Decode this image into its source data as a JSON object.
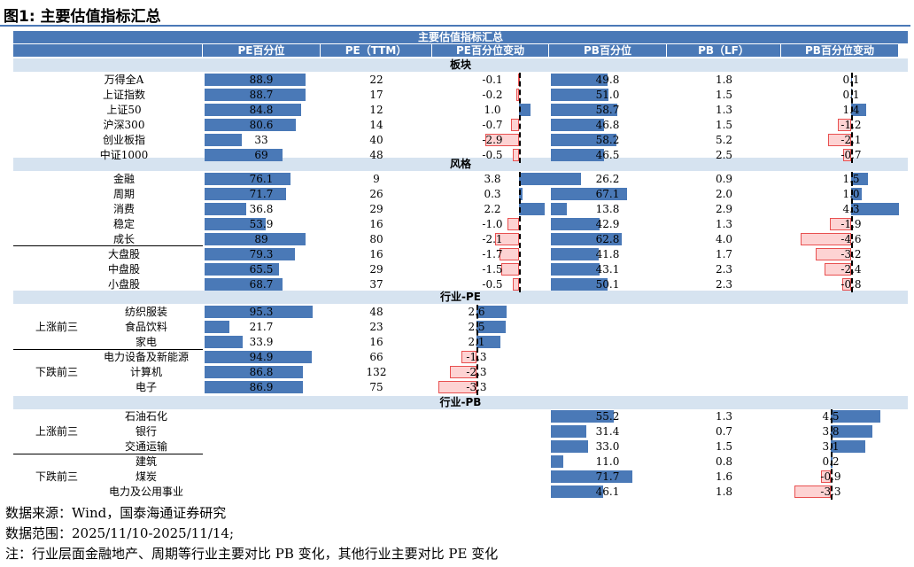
{
  "figure_title": "图1:  主要估值指标汇总",
  "table_title": "主要估值指标汇总",
  "headers": [
    "PE百分位",
    "PE（TTM）",
    "PE百分位变动",
    "PB百分位",
    "PB（LF）",
    "PB百分位变动"
  ],
  "sections": {
    "board": "板块",
    "style": "风格",
    "industry_pe": "行业-PE",
    "industry_pb": "行业-PB"
  },
  "groups": {
    "pe_up": "上涨前三",
    "pe_down": "下跌前三",
    "pb_up": "上涨前三",
    "pb_down": "下跌前三"
  },
  "notes": [
    "数据来源：Wind，国泰海通证券研究",
    "数据范围：2025/11/10-2025/11/14;",
    "注：行业层面金融地产、周期等行业主要对比 PB 变化，其他行业主要对比 PE 变化"
  ],
  "colors": {
    "header": "#4a79b7",
    "section": "#d6e3f0",
    "pos_bar": "#4a79b7",
    "neg_fill": "#fdd3d3",
    "neg_border": "#e85050"
  },
  "chart_data": {
    "type": "table",
    "rows": [
      {
        "name": "万得全A",
        "pe_pct": "88.9",
        "pe_ttm": "22",
        "pe_chg": "-0.1",
        "pb_pct": "49.8",
        "pb_lf": "1.8",
        "pb_chg": "0.1"
      },
      {
        "name": "上证指数",
        "pe_pct": "88.7",
        "pe_ttm": "17",
        "pe_chg": "-0.2",
        "pb_pct": "51.0",
        "pb_lf": "1.5",
        "pb_chg": "0.1"
      },
      {
        "name": "上证50",
        "pe_pct": "84.8",
        "pe_ttm": "12",
        "pe_chg": "1.0",
        "pb_pct": "58.7",
        "pb_lf": "1.3",
        "pb_chg": "1.4"
      },
      {
        "name": "沪深300",
        "pe_pct": "80.6",
        "pe_ttm": "14",
        "pe_chg": "-0.7",
        "pb_pct": "46.8",
        "pb_lf": "1.5",
        "pb_chg": "-1.2"
      },
      {
        "name": "创业板指",
        "pe_pct": "33",
        "pe_ttm": "40",
        "pe_chg": "-2.9",
        "pb_pct": "58.2",
        "pb_lf": "5.2",
        "pb_chg": "-2.1"
      },
      {
        "name": "中证1000",
        "pe_pct": "69",
        "pe_ttm": "48",
        "pe_chg": "-0.5",
        "pb_pct": "46.5",
        "pb_lf": "2.5",
        "pb_chg": "-0.7"
      },
      {
        "name": "金融",
        "pe_pct": "76.1",
        "pe_ttm": "9",
        "pe_chg": "3.8",
        "pb_pct": "26.2",
        "pb_lf": "0.9",
        "pb_chg": "1.5"
      },
      {
        "name": "周期",
        "pe_pct": "71.7",
        "pe_ttm": "26",
        "pe_chg": "0.3",
        "pb_pct": "67.1",
        "pb_lf": "2.0",
        "pb_chg": "1.0"
      },
      {
        "name": "消费",
        "pe_pct": "36.8",
        "pe_ttm": "29",
        "pe_chg": "2.2",
        "pb_pct": "13.8",
        "pb_lf": "2.9",
        "pb_chg": "4.3"
      },
      {
        "name": "稳定",
        "pe_pct": "53.9",
        "pe_ttm": "16",
        "pe_chg": "-1.0",
        "pb_pct": "42.9",
        "pb_lf": "1.3",
        "pb_chg": "-1.9"
      },
      {
        "name": "成长",
        "pe_pct": "89",
        "pe_ttm": "80",
        "pe_chg": "-2.1",
        "pb_pct": "62.8",
        "pb_lf": "4.0",
        "pb_chg": "-4.6"
      },
      {
        "name": "大盘股",
        "pe_pct": "79.3",
        "pe_ttm": "16",
        "pe_chg": "-1.7",
        "pb_pct": "41.8",
        "pb_lf": "1.7",
        "pb_chg": "-3.2"
      },
      {
        "name": "中盘股",
        "pe_pct": "65.5",
        "pe_ttm": "29",
        "pe_chg": "-1.5",
        "pb_pct": "43.1",
        "pb_lf": "2.3",
        "pb_chg": "-2.4"
      },
      {
        "name": "小盘股",
        "pe_pct": "68.7",
        "pe_ttm": "37",
        "pe_chg": "-0.5",
        "pb_pct": "50.1",
        "pb_lf": "2.3",
        "pb_chg": "-0.8"
      },
      {
        "name": "纺织服装",
        "pe_pct": "95.3",
        "pe_ttm": "48",
        "pe_chg": "2.6"
      },
      {
        "name": "食品饮料",
        "pe_pct": "21.7",
        "pe_ttm": "23",
        "pe_chg": "2.5"
      },
      {
        "name": "家电",
        "pe_pct": "33.9",
        "pe_ttm": "16",
        "pe_chg": "2.1"
      },
      {
        "name": "电力设备及新能源",
        "pe_pct": "94.9",
        "pe_ttm": "66",
        "pe_chg": "-1.3"
      },
      {
        "name": "计算机",
        "pe_pct": "86.8",
        "pe_ttm": "132",
        "pe_chg": "-2.3"
      },
      {
        "name": "电子",
        "pe_pct": "86.9",
        "pe_ttm": "75",
        "pe_chg": "-3.3"
      },
      {
        "name": "石油石化",
        "pb_pct": "55.2",
        "pb_lf": "1.3",
        "pb_chg": "4.5"
      },
      {
        "name": "银行",
        "pb_pct": "31.4",
        "pb_lf": "0.7",
        "pb_chg": "3.8"
      },
      {
        "name": "交通运输",
        "pb_pct": "33.0",
        "pb_lf": "1.5",
        "pb_chg": "3.1"
      },
      {
        "name": "建筑",
        "pb_pct": "11.0",
        "pb_lf": "0.8",
        "pb_chg": "0.2"
      },
      {
        "name": "煤炭",
        "pb_pct": "71.7",
        "pb_lf": "1.6",
        "pb_chg": "-0.9"
      },
      {
        "name": "电力及公用事业",
        "pb_pct": "46.1",
        "pb_lf": "1.8",
        "pb_chg": "-3.3"
      }
    ]
  }
}
